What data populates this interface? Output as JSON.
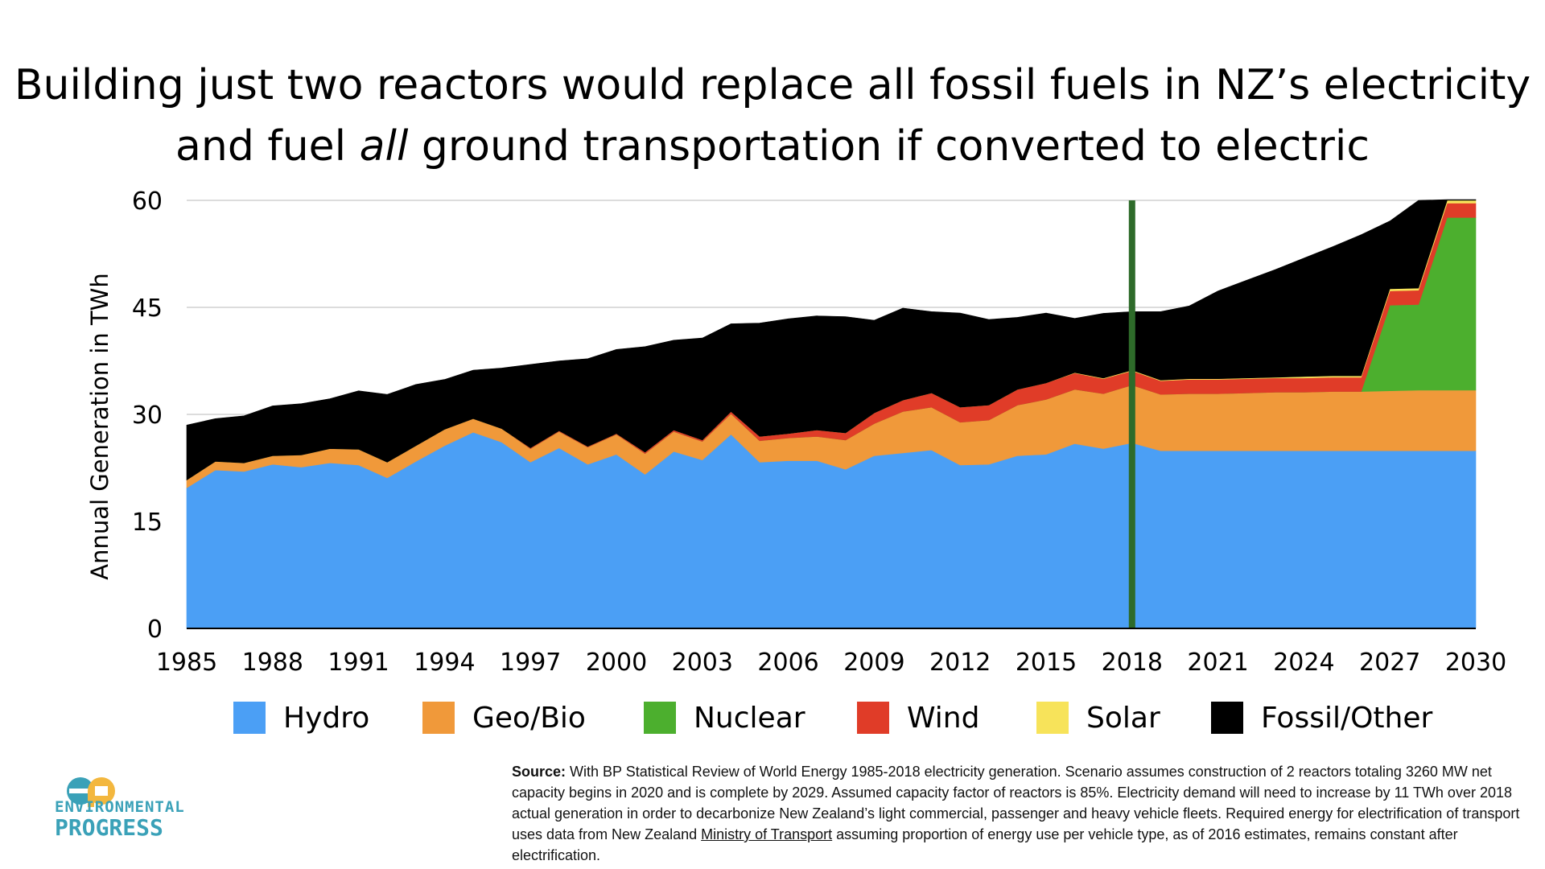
{
  "chart_data": {
    "type": "area",
    "title_line1": "Building just two reactors would replace all fossil fuels in NZ’s electricity",
    "title_line2_pre": "and fuel ",
    "title_line2_em": "all",
    "title_line2_post": " ground transportation if converted to electric",
    "ylabel": "Annual Generation in TWh",
    "xlabel": "",
    "ylim": [
      0,
      60
    ],
    "xlim": [
      1985,
      2030
    ],
    "yticks": [
      0,
      15,
      30,
      45,
      60
    ],
    "xticks": [
      1985,
      1988,
      1991,
      1994,
      1997,
      2000,
      2003,
      2006,
      2009,
      2012,
      2015,
      2018,
      2021,
      2024,
      2027,
      2030
    ],
    "marker_year": 2018,
    "grid": true,
    "legend_position": "bottom",
    "stacked": true,
    "x": [
      1985,
      1986,
      1987,
      1988,
      1989,
      1990,
      1991,
      1992,
      1993,
      1994,
      1995,
      1996,
      1997,
      1998,
      1999,
      2000,
      2001,
      2002,
      2003,
      2004,
      2005,
      2006,
      2007,
      2008,
      2009,
      2010,
      2011,
      2012,
      2013,
      2014,
      2015,
      2016,
      2017,
      2018,
      2019,
      2020,
      2021,
      2022,
      2023,
      2024,
      2025,
      2026,
      2027,
      2028,
      2029,
      2030
    ],
    "series": [
      {
        "name": "Hydro",
        "color": "#4b9ff5",
        "values": [
          19.7,
          22.2,
          22.0,
          23.0,
          22.6,
          23.2,
          22.9,
          21.1,
          23.4,
          25.6,
          27.5,
          26.1,
          23.3,
          25.3,
          23.0,
          24.4,
          21.6,
          24.8,
          23.6,
          27.2,
          23.3,
          23.5,
          23.5,
          22.3,
          24.2,
          24.6,
          25.0,
          22.9,
          23.0,
          24.2,
          24.4,
          25.9,
          25.2,
          26.0,
          24.9,
          24.9,
          24.9,
          24.9,
          24.9,
          24.9,
          24.9,
          24.9,
          24.9,
          24.9,
          24.9,
          24.9
        ]
      },
      {
        "name": "Geo/Bio",
        "color": "#f0993a",
        "values": [
          1.1,
          1.2,
          1.2,
          1.2,
          1.7,
          2.0,
          2.2,
          2.2,
          2.2,
          2.3,
          1.9,
          1.9,
          1.9,
          2.3,
          2.4,
          2.8,
          2.9,
          2.8,
          2.6,
          2.9,
          3.0,
          3.2,
          3.4,
          4.1,
          4.5,
          5.8,
          6.0,
          6.0,
          6.2,
          7.1,
          7.7,
          7.6,
          7.7,
          8.1,
          7.9,
          8.0,
          8.0,
          8.1,
          8.2,
          8.2,
          8.3,
          8.3,
          8.4,
          8.5,
          8.5,
          8.5
        ]
      },
      {
        "name": "Nuclear",
        "color": "#4caf2e",
        "values": [
          0,
          0,
          0,
          0,
          0,
          0,
          0,
          0,
          0,
          0,
          0,
          0,
          0,
          0,
          0,
          0,
          0,
          0,
          0,
          0,
          0,
          0,
          0,
          0,
          0,
          0,
          0,
          0,
          0,
          0,
          0,
          0,
          0,
          0,
          0,
          0,
          0,
          0,
          0,
          0,
          0,
          0,
          12.0,
          12.0,
          24.2,
          24.2
        ]
      },
      {
        "name": "Wind",
        "color": "#e03c28",
        "values": [
          0,
          0,
          0,
          0,
          0,
          0,
          0,
          0,
          0,
          0,
          0,
          0,
          0.1,
          0.1,
          0.1,
          0.1,
          0.2,
          0.2,
          0.2,
          0.3,
          0.6,
          0.6,
          0.9,
          1.0,
          1.5,
          1.6,
          2.0,
          2.1,
          2.1,
          2.2,
          2.3,
          2.3,
          2.1,
          2.0,
          1.9,
          2.0,
          2.0,
          2.0,
          2.0,
          2.0,
          2.0,
          2.0,
          2.0,
          2.0,
          2.0,
          2.0
        ]
      },
      {
        "name": "Solar",
        "color": "#f7e35a",
        "values": [
          0,
          0,
          0,
          0,
          0,
          0,
          0,
          0,
          0,
          0,
          0,
          0,
          0,
          0,
          0,
          0,
          0,
          0,
          0,
          0,
          0,
          0,
          0,
          0,
          0,
          0,
          0,
          0,
          0,
          0,
          0,
          0.05,
          0.07,
          0.1,
          0.1,
          0.1,
          0.1,
          0.1,
          0.1,
          0.2,
          0.2,
          0.2,
          0.3,
          0.3,
          0.4,
          0.4
        ]
      },
      {
        "name": "Fossil/Other",
        "color": "#000000",
        "values": [
          7.7,
          6.0,
          6.6,
          7.0,
          7.2,
          7.0,
          8.2,
          9.5,
          8.6,
          7.0,
          6.8,
          8.5,
          11.7,
          9.8,
          12.3,
          11.8,
          14.8,
          12.6,
          14.3,
          12.3,
          15.9,
          16.1,
          16.0,
          16.3,
          13.0,
          12.9,
          11.4,
          13.2,
          12.0,
          10.1,
          9.8,
          7.6,
          9.1,
          8.2,
          9.6,
          10.2,
          12.3,
          13.7,
          15.1,
          16.6,
          18.1,
          19.8,
          9.5,
          12.3,
          0.1,
          0.1
        ]
      }
    ]
  },
  "legend": [
    {
      "label": "Hydro",
      "color": "#4b9ff5"
    },
    {
      "label": "Geo/Bio",
      "color": "#f0993a"
    },
    {
      "label": "Nuclear",
      "color": "#4caf2e"
    },
    {
      "label": "Wind",
      "color": "#e03c28"
    },
    {
      "label": "Solar",
      "color": "#f7e35a"
    },
    {
      "label": "Fossil/Other",
      "color": "#000000"
    }
  ],
  "marker_color": "#2e6b2a",
  "logo": {
    "line1": "ENVIRONMENTAL",
    "line2": "PROGRESS",
    "color": "#3aa1b8",
    "accent": "#f3b73e"
  },
  "source": {
    "label": "Source:",
    "text_pre": " With BP Statistical Review of World Energy 1985-2018 electricity generation. Scenario assumes construction of 2 reactors totaling 3260 MW net capacity begins in 2020 and is complete by 2029. Assumed capacity factor of reactors is 85%. Electricity demand will need to increase by 11 TWh over 2018 actual generation in order to decarbonize New Zealand’s light commercial, passenger and heavy vehicle fleets. Required energy for electrification of transport uses data from New Zealand ",
    "link": "Ministry of Transport",
    "text_post": " assuming proportion of energy use per vehicle type, as of 2016 estimates, remains constant after electrification."
  }
}
